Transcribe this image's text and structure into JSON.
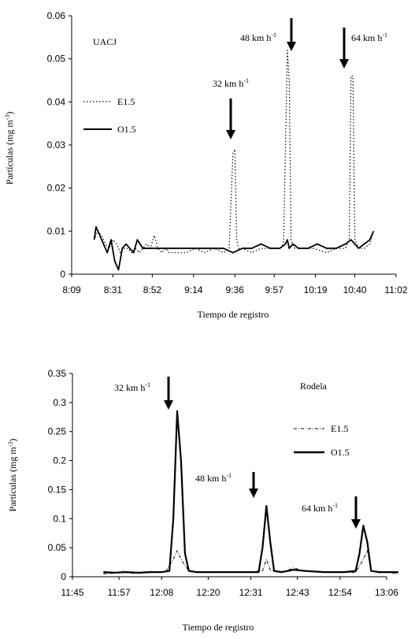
{
  "chart_data": [
    {
      "type": "line",
      "title": "UACJ",
      "xlabel": "Tiempo  de  registro",
      "ylabel_main": "Partículas (mg m",
      "ylabel_sup": "-3",
      "ylabel_close": ")",
      "x_ticks": [
        "8:09",
        "8:31",
        "8:52",
        "9:14",
        "9:36",
        "9:57",
        "10:19",
        "10:40",
        "11:02"
      ],
      "y_ticks": [
        "0",
        "0.01",
        "0.02",
        "0.03",
        "0.04",
        "0.05",
        "0.06"
      ],
      "ylim": [
        0,
        0.06
      ],
      "legend_position": "left",
      "series": [
        {
          "name": "E1.5",
          "style": "dotted",
          "x": [
            "8:21",
            "8:23",
            "8:25",
            "8:27",
            "8:29",
            "8:31",
            "8:33",
            "8:35",
            "8:37",
            "8:39",
            "8:41",
            "8:43",
            "8:45",
            "8:47",
            "8:49",
            "8:51",
            "8:53",
            "8:55",
            "8:57",
            "8:59",
            "9:01",
            "9:05",
            "9:10",
            "9:15",
            "9:20",
            "9:25",
            "9:30",
            "9:33",
            "9:35",
            "9:36",
            "9:37",
            "9:38",
            "9:40",
            "9:45",
            "9:50",
            "9:55",
            "10:00",
            "10:02",
            "10:04",
            "10:05",
            "10:06",
            "10:08",
            "10:12",
            "10:18",
            "10:25",
            "10:30",
            "10:35",
            "10:37",
            "10:38",
            "10:39",
            "10:40",
            "10:42",
            "10:45",
            "10:48",
            "10:50"
          ],
          "values": [
            0.008,
            0.01,
            0.009,
            0.007,
            0.006,
            0.008,
            0.007,
            0.005,
            0.006,
            0.006,
            0.005,
            0.006,
            0.005,
            0.006,
            0.007,
            0.006,
            0.009,
            0.006,
            0.005,
            0.006,
            0.005,
            0.005,
            0.005,
            0.006,
            0.005,
            0.006,
            0.005,
            0.006,
            0.028,
            0.029,
            0.008,
            0.006,
            0.006,
            0.005,
            0.006,
            0.006,
            0.006,
            0.007,
            0.052,
            0.045,
            0.008,
            0.006,
            0.006,
            0.006,
            0.005,
            0.006,
            0.006,
            0.008,
            0.046,
            0.046,
            0.008,
            0.006,
            0.006,
            0.007,
            0.01
          ]
        },
        {
          "name": "O1.5",
          "style": "solid",
          "x": [
            "8:21",
            "8:22",
            "8:24",
            "8:26",
            "8:28",
            "8:30",
            "8:32",
            "8:34",
            "8:36",
            "8:38",
            "8:40",
            "8:42",
            "8:44",
            "8:47",
            "8:50",
            "8:55",
            "9:00",
            "9:05",
            "9:10",
            "9:15",
            "9:20",
            "9:25",
            "9:30",
            "9:35",
            "9:40",
            "9:45",
            "9:50",
            "9:55",
            "10:00",
            "10:03",
            "10:04",
            "10:05",
            "10:07",
            "10:10",
            "10:15",
            "10:20",
            "10:25",
            "10:30",
            "10:35",
            "10:38",
            "10:40",
            "10:42",
            "10:45",
            "10:48",
            "10:50"
          ],
          "values": [
            0.008,
            0.011,
            0.009,
            0.007,
            0.005,
            0.008,
            0.003,
            0.001,
            0.006,
            0.007,
            0.006,
            0.005,
            0.008,
            0.006,
            0.006,
            0.006,
            0.006,
            0.006,
            0.006,
            0.006,
            0.006,
            0.006,
            0.006,
            0.005,
            0.006,
            0.006,
            0.007,
            0.006,
            0.006,
            0.007,
            0.008,
            0.006,
            0.007,
            0.006,
            0.006,
            0.007,
            0.006,
            0.006,
            0.007,
            0.008,
            0.007,
            0.006,
            0.007,
            0.008,
            0.01
          ]
        }
      ],
      "annotations": [
        {
          "text": "32 km h",
          "sup": "-1",
          "x": "9:36"
        },
        {
          "text": "48 km h",
          "sup": "-1",
          "x": "10:05"
        },
        {
          "text": "64 km h",
          "sup": "-1",
          "x": "10:38"
        }
      ]
    },
    {
      "type": "line",
      "title": "Rodela",
      "xlabel": "Tiempo  de  registro",
      "ylabel_main": "Partículas (mg m",
      "ylabel_sup": "-3",
      "ylabel_close": ")",
      "x_ticks": [
        "11:45",
        "11:57",
        "12:08",
        "12:20",
        "12:31",
        "12:43",
        "12:54",
        "13:06"
      ],
      "y_ticks": [
        "0",
        "0.05",
        "0.1",
        "0.15",
        "0.2",
        "0.25",
        "0.3",
        "0.35"
      ],
      "ylim": [
        0,
        0.35
      ],
      "legend_position": "right",
      "series": [
        {
          "name": "E1.5",
          "style": "dashdot",
          "x": [
            "11:53",
            "11:56",
            "11:58",
            "12:00",
            "12:03",
            "12:06",
            "12:09",
            "12:11",
            "12:12",
            "12:13",
            "12:15",
            "12:20",
            "12:25",
            "12:30",
            "12:34",
            "12:35",
            "12:36",
            "12:38",
            "12:40",
            "12:42",
            "12:45",
            "12:50",
            "12:55",
            "12:58",
            "13:00",
            "13:01",
            "13:02",
            "13:04",
            "13:06",
            "13:09"
          ],
          "values": [
            0.005,
            0.006,
            0.01,
            0.006,
            0.006,
            0.008,
            0.008,
            0.03,
            0.045,
            0.03,
            0.01,
            0.007,
            0.008,
            0.008,
            0.01,
            0.03,
            0.012,
            0.008,
            0.01,
            0.015,
            0.01,
            0.008,
            0.008,
            0.007,
            0.03,
            0.045,
            0.01,
            0.007,
            0.008,
            0.005
          ]
        },
        {
          "name": "O1.5",
          "style": "solid",
          "x": [
            "11:53",
            "11:56",
            "11:59",
            "12:02",
            "12:05",
            "12:08",
            "12:10",
            "12:11",
            "12:12",
            "12:13",
            "12:14",
            "12:15",
            "12:17",
            "12:20",
            "12:25",
            "12:30",
            "12:33",
            "12:34",
            "12:35",
            "12:36",
            "12:37",
            "12:39",
            "12:42",
            "12:45",
            "12:50",
            "12:55",
            "12:58",
            "12:59",
            "13:00",
            "13:01",
            "13:02",
            "13:04",
            "13:06",
            "13:09"
          ],
          "values": [
            0.008,
            0.007,
            0.008,
            0.007,
            0.008,
            0.008,
            0.01,
            0.1,
            0.285,
            0.2,
            0.04,
            0.01,
            0.008,
            0.008,
            0.008,
            0.008,
            0.008,
            0.05,
            0.122,
            0.06,
            0.01,
            0.008,
            0.012,
            0.01,
            0.008,
            0.008,
            0.01,
            0.04,
            0.088,
            0.06,
            0.01,
            0.008,
            0.008,
            0.008
          ]
        }
      ],
      "annotations": [
        {
          "text": "32 km h",
          "sup": "-1",
          "x": "12:12"
        },
        {
          "text": "48 km h",
          "sup": "-1",
          "x": "12:35"
        },
        {
          "text": "64 km h",
          "sup": "-1",
          "x": "13:00"
        }
      ]
    }
  ]
}
